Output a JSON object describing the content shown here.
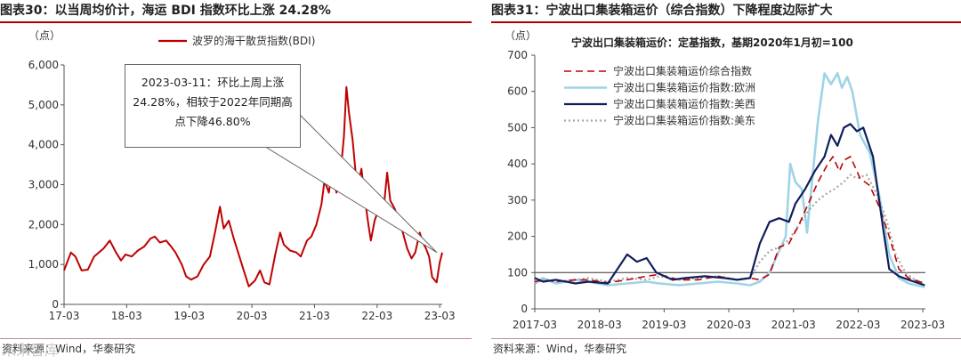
{
  "left_panel": {
    "title": "图表30：以当周均价计，海运 BDI 指数环比上涨 24.28%",
    "source": "资料来源：Wind，华泰研究",
    "watermark": "未来智库"
  },
  "right_panel": {
    "title": "图表31：宁波出口集装箱运价（综合指数）下降程度边际扩大",
    "source": "资料来源：Wind，华泰研究"
  },
  "colors": {
    "title_rule": "#b00000",
    "bdi": "#c00000",
    "composite": "#c00000",
    "europe": "#9fd3e6",
    "us_west": "#0f1f5c",
    "us_east": "#a6a6a6"
  },
  "chart_data": [
    {
      "type": "line",
      "unit": "（点）",
      "x_ticks": [
        "17-03",
        "18-03",
        "19-03",
        "20-03",
        "21-03",
        "22-03",
        "23-03"
      ],
      "ylim": [
        0,
        6000
      ],
      "y_ticks": [
        "0",
        "1,000",
        "2,000",
        "3,000",
        "4,000",
        "5,000",
        "6,000"
      ],
      "legend": "top-center",
      "series": [
        {
          "name": "波罗的海干散货指数(BDI)",
          "color": "#c00000",
          "points": [
            [
              2017.17,
              850
            ],
            [
              2017.28,
              1300
            ],
            [
              2017.35,
              1200
            ],
            [
              2017.45,
              850
            ],
            [
              2017.55,
              870
            ],
            [
              2017.65,
              1200
            ],
            [
              2017.8,
              1400
            ],
            [
              2017.9,
              1600
            ],
            [
              2018.0,
              1300
            ],
            [
              2018.08,
              1100
            ],
            [
              2018.15,
              1250
            ],
            [
              2018.25,
              1200
            ],
            [
              2018.35,
              1350
            ],
            [
              2018.45,
              1450
            ],
            [
              2018.55,
              1650
            ],
            [
              2018.62,
              1700
            ],
            [
              2018.7,
              1550
            ],
            [
              2018.8,
              1600
            ],
            [
              2018.88,
              1450
            ],
            [
              2018.95,
              1300
            ],
            [
              2019.05,
              1000
            ],
            [
              2019.12,
              700
            ],
            [
              2019.2,
              620
            ],
            [
              2019.3,
              700
            ],
            [
              2019.4,
              1000
            ],
            [
              2019.5,
              1200
            ],
            [
              2019.58,
              1800
            ],
            [
              2019.66,
              2450
            ],
            [
              2019.72,
              1900
            ],
            [
              2019.8,
              2100
            ],
            [
              2019.88,
              1650
            ],
            [
              2019.95,
              1300
            ],
            [
              2020.05,
              800
            ],
            [
              2020.12,
              450
            ],
            [
              2020.22,
              600
            ],
            [
              2020.3,
              850
            ],
            [
              2020.37,
              550
            ],
            [
              2020.45,
              500
            ],
            [
              2020.55,
              1300
            ],
            [
              2020.62,
              1800
            ],
            [
              2020.68,
              1500
            ],
            [
              2020.78,
              1350
            ],
            [
              2020.88,
              1300
            ],
            [
              2020.95,
              1200
            ],
            [
              2021.05,
              1600
            ],
            [
              2021.12,
              1700
            ],
            [
              2021.2,
              2000
            ],
            [
              2021.28,
              2500
            ],
            [
              2021.33,
              3100
            ],
            [
              2021.4,
              2800
            ],
            [
              2021.45,
              3400
            ],
            [
              2021.52,
              2800
            ],
            [
              2021.58,
              3200
            ],
            [
              2021.64,
              4200
            ],
            [
              2021.68,
              5450
            ],
            [
              2021.72,
              4800
            ],
            [
              2021.78,
              4100
            ],
            [
              2021.85,
              2900
            ],
            [
              2021.92,
              3400
            ],
            [
              2021.97,
              2700
            ],
            [
              2022.03,
              2000
            ],
            [
              2022.07,
              1600
            ],
            [
              2022.13,
              2100
            ],
            [
              2022.2,
              2400
            ],
            [
              2022.28,
              2500
            ],
            [
              2022.33,
              3300
            ],
            [
              2022.38,
              2600
            ],
            [
              2022.45,
              2400
            ],
            [
              2022.52,
              2100
            ],
            [
              2022.58,
              1800
            ],
            [
              2022.65,
              1400
            ],
            [
              2022.72,
              1150
            ],
            [
              2022.78,
              1300
            ],
            [
              2022.85,
              1800
            ],
            [
              2022.9,
              1550
            ],
            [
              2022.95,
              1400
            ],
            [
              2023.0,
              1200
            ],
            [
              2023.05,
              680
            ],
            [
              2023.12,
              550
            ],
            [
              2023.17,
              1050
            ],
            [
              2023.21,
              1300
            ]
          ]
        }
      ],
      "annotation": "2023-03-11：环比上周上涨24.28%，相较于2022年同期高点下降46.80%"
    },
    {
      "type": "line",
      "unit": "（点）",
      "title": "宁波出口集装箱运价：定基指数，基期2020年1月初=100",
      "x_ticks": [
        "2017-03",
        "2018-03",
        "2019-03",
        "2020-03",
        "2021-03",
        "2022-03",
        "2023-03"
      ],
      "ylim": [
        0,
        700
      ],
      "y_ticks": [
        "0",
        "100",
        "200",
        "300",
        "400",
        "500",
        "600",
        "700"
      ],
      "baseline": 100,
      "legend": "top-left",
      "series": [
        {
          "name": "宁波出口集装箱运价综合指数",
          "color": "#c00000",
          "style": "dashed",
          "points": [
            [
              2017.17,
              75
            ],
            [
              2017.3,
              80
            ],
            [
              2017.5,
              75
            ],
            [
              2017.8,
              80
            ],
            [
              2018.0,
              80
            ],
            [
              2018.3,
              72
            ],
            [
              2018.6,
              80
            ],
            [
              2018.9,
              90
            ],
            [
              2019.1,
              95
            ],
            [
              2019.4,
              80
            ],
            [
              2019.7,
              80
            ],
            [
              2020.0,
              90
            ],
            [
              2020.3,
              80
            ],
            [
              2020.5,
              85
            ],
            [
              2020.65,
              80
            ],
            [
              2020.8,
              95
            ],
            [
              2020.95,
              170
            ],
            [
              2021.1,
              180
            ],
            [
              2021.25,
              230
            ],
            [
              2021.4,
              290
            ],
            [
              2021.55,
              350
            ],
            [
              2021.7,
              400
            ],
            [
              2021.78,
              420
            ],
            [
              2021.88,
              380
            ],
            [
              2021.95,
              410
            ],
            [
              2022.05,
              420
            ],
            [
              2022.2,
              360
            ],
            [
              2022.35,
              340
            ],
            [
              2022.5,
              280
            ],
            [
              2022.65,
              200
            ],
            [
              2022.8,
              110
            ],
            [
              2022.95,
              85
            ],
            [
              2023.2,
              70
            ]
          ]
        },
        {
          "name": "宁波出口集装箱运价指数:欧洲",
          "color": "#9fd3e6",
          "style": "solid",
          "points": [
            [
              2017.17,
              70
            ],
            [
              2017.3,
              85
            ],
            [
              2017.5,
              70
            ],
            [
              2017.8,
              80
            ],
            [
              2018.0,
              75
            ],
            [
              2018.3,
              65
            ],
            [
              2018.6,
              70
            ],
            [
              2018.9,
              75
            ],
            [
              2019.1,
              70
            ],
            [
              2019.4,
              65
            ],
            [
              2019.7,
              70
            ],
            [
              2020.0,
              75
            ],
            [
              2020.3,
              70
            ],
            [
              2020.5,
              65
            ],
            [
              2020.65,
              75
            ],
            [
              2020.8,
              100
            ],
            [
              2020.95,
              160
            ],
            [
              2021.05,
              200
            ],
            [
              2021.12,
              400
            ],
            [
              2021.2,
              350
            ],
            [
              2021.3,
              330
            ],
            [
              2021.38,
              210
            ],
            [
              2021.45,
              340
            ],
            [
              2021.55,
              520
            ],
            [
              2021.65,
              650
            ],
            [
              2021.75,
              620
            ],
            [
              2021.85,
              650
            ],
            [
              2021.92,
              610
            ],
            [
              2022.0,
              640
            ],
            [
              2022.08,
              600
            ],
            [
              2022.2,
              480
            ],
            [
              2022.35,
              430
            ],
            [
              2022.5,
              310
            ],
            [
              2022.65,
              150
            ],
            [
              2022.8,
              85
            ],
            [
              2022.95,
              70
            ],
            [
              2023.2,
              60
            ]
          ]
        },
        {
          "name": "宁波出口集装箱运价指数:美西",
          "color": "#0f1f5c",
          "style": "solid",
          "points": [
            [
              2017.17,
              85
            ],
            [
              2017.3,
              75
            ],
            [
              2017.5,
              80
            ],
            [
              2017.8,
              70
            ],
            [
              2018.0,
              75
            ],
            [
              2018.3,
              70
            ],
            [
              2018.45,
              110
            ],
            [
              2018.6,
              150
            ],
            [
              2018.75,
              130
            ],
            [
              2018.9,
              140
            ],
            [
              2019.05,
              100
            ],
            [
              2019.3,
              80
            ],
            [
              2019.5,
              85
            ],
            [
              2019.8,
              90
            ],
            [
              2020.1,
              85
            ],
            [
              2020.3,
              80
            ],
            [
              2020.5,
              85
            ],
            [
              2020.65,
              180
            ],
            [
              2020.8,
              240
            ],
            [
              2020.95,
              250
            ],
            [
              2021.1,
              240
            ],
            [
              2021.2,
              290
            ],
            [
              2021.35,
              330
            ],
            [
              2021.5,
              380
            ],
            [
              2021.65,
              420
            ],
            [
              2021.75,
              480
            ],
            [
              2021.85,
              450
            ],
            [
              2021.95,
              500
            ],
            [
              2022.05,
              510
            ],
            [
              2022.15,
              490
            ],
            [
              2022.25,
              500
            ],
            [
              2022.4,
              420
            ],
            [
              2022.55,
              230
            ],
            [
              2022.65,
              110
            ],
            [
              2022.8,
              90
            ],
            [
              2022.95,
              80
            ],
            [
              2023.2,
              65
            ]
          ]
        },
        {
          "name": "宁波出口集装箱运价指数:美东",
          "color": "#a6a6a6",
          "style": "dotted",
          "points": [
            [
              2017.17,
              70
            ],
            [
              2017.3,
              80
            ],
            [
              2017.5,
              75
            ],
            [
              2017.8,
              80
            ],
            [
              2018.0,
              85
            ],
            [
              2018.3,
              75
            ],
            [
              2018.6,
              85
            ],
            [
              2018.9,
              80
            ],
            [
              2019.1,
              90
            ],
            [
              2019.4,
              80
            ],
            [
              2019.7,
              85
            ],
            [
              2020.0,
              90
            ],
            [
              2020.3,
              80
            ],
            [
              2020.5,
              85
            ],
            [
              2020.65,
              130
            ],
            [
              2020.8,
              160
            ],
            [
              2020.95,
              170
            ],
            [
              2021.1,
              190
            ],
            [
              2021.25,
              230
            ],
            [
              2021.4,
              270
            ],
            [
              2021.55,
              300
            ],
            [
              2021.7,
              320
            ],
            [
              2021.8,
              330
            ],
            [
              2021.95,
              350
            ],
            [
              2022.05,
              370
            ],
            [
              2022.15,
              360
            ],
            [
              2022.3,
              370
            ],
            [
              2022.45,
              320
            ],
            [
              2022.6,
              250
            ],
            [
              2022.75,
              150
            ],
            [
              2022.9,
              100
            ],
            [
              2023.05,
              80
            ],
            [
              2023.2,
              70
            ]
          ]
        }
      ]
    }
  ]
}
